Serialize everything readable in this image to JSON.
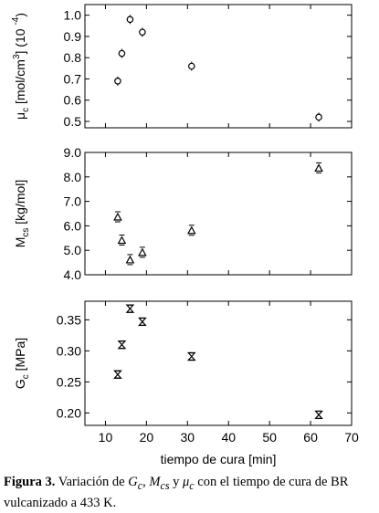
{
  "chart_data": [
    {
      "type": "scatter",
      "ylabel": "μc [mol/cm3] (10 -4)",
      "ylabel_parts": {
        "mu": "μ",
        "sub": "c",
        "unit_a": " [mol/cm",
        "sup3": "3",
        "unit_b": "] (10 ",
        "exp": "-4",
        "close": ")"
      },
      "marker": "circle",
      "ylim": [
        0.47,
        1.05
      ],
      "yticks": [
        0.5,
        0.6,
        0.7,
        0.8,
        0.9,
        1.0
      ],
      "ytick_labels": [
        "0.5",
        "0.6",
        "0.7",
        "0.8",
        "0.9",
        "1.0"
      ],
      "x": [
        13,
        14,
        16,
        19,
        31,
        62
      ],
      "y": [
        0.69,
        0.82,
        0.98,
        0.92,
        0.76,
        0.52
      ]
    },
    {
      "type": "scatter",
      "ylabel": "Mcs [kg/mol]",
      "ylabel_parts": {
        "main": "M",
        "sub": "cs",
        "unit": " [kg/mol]"
      },
      "marker": "triangle",
      "ylim": [
        4.0,
        9.0
      ],
      "yticks": [
        4.0,
        5.0,
        6.0,
        7.0,
        8.0,
        9.0
      ],
      "ytick_labels": [
        "4.0",
        "5.0",
        "6.0",
        "7.0",
        "8.0",
        "9.0"
      ],
      "x": [
        13,
        14,
        16,
        19,
        31,
        62
      ],
      "y": [
        6.35,
        5.4,
        4.6,
        4.9,
        5.8,
        8.35
      ]
    },
    {
      "type": "scatter",
      "ylabel": "Gc [MPa]",
      "ylabel_parts": {
        "main": "G",
        "sub": "c",
        "unit": " [MPa]"
      },
      "marker": "hourglass",
      "ylim": [
        0.18,
        0.38
      ],
      "yticks": [
        0.2,
        0.25,
        0.3,
        0.35
      ],
      "ytick_labels": [
        "0.20",
        "0.25",
        "0.30",
        "0.35"
      ],
      "x": [
        13,
        14,
        16,
        19,
        31,
        62
      ],
      "y": [
        0.262,
        0.31,
        0.368,
        0.347,
        0.291,
        0.197
      ]
    }
  ],
  "x_axis": {
    "label": "tiempo de cura [min]",
    "xlim": [
      5,
      70
    ],
    "ticks": [
      10,
      20,
      30,
      40,
      50,
      60,
      70
    ],
    "tick_labels": [
      "10",
      "20",
      "30",
      "40",
      "50",
      "60",
      "70"
    ]
  },
  "caption": {
    "label": "Figura 3.",
    "text": "Variación de Gc, Mcs y μc con el tiempo de cura de BR vulcanizado a 433 K.",
    "parts": {
      "a": " Variación de ",
      "g": "G",
      "g_sub": "c",
      "b": ", ",
      "m": "M",
      "m_sub": "cs",
      "c": " y ",
      "mu": "μ",
      "mu_sub": "c",
      "d": " con el tiempo de cura de BR vulcanizado a 433 K."
    }
  }
}
